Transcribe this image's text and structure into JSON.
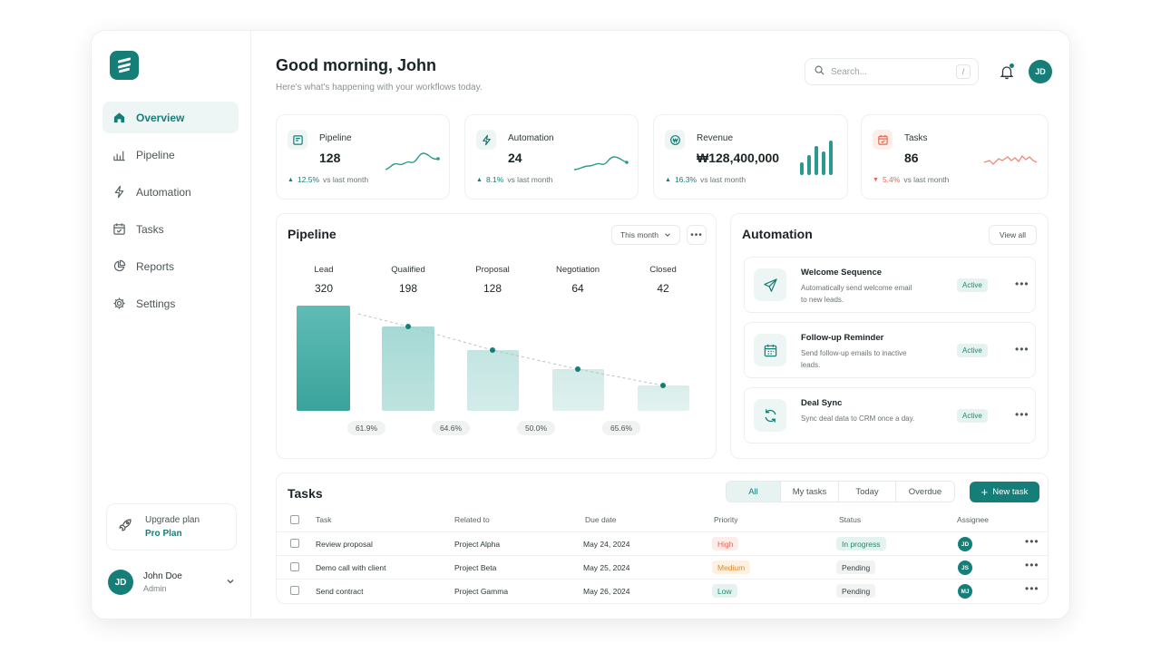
{
  "sidebar": {
    "items": [
      {
        "label": "Overview",
        "icon": "home-icon"
      },
      {
        "label": "Pipeline",
        "icon": "bar-chart-icon"
      },
      {
        "label": "Automation",
        "icon": "lightning-icon"
      },
      {
        "label": "Tasks",
        "icon": "calendar-check-icon"
      },
      {
        "label": "Reports",
        "icon": "pie-chart-icon"
      },
      {
        "label": "Settings",
        "icon": "gear-icon"
      }
    ],
    "upgrade": {
      "title": "Upgrade plan",
      "plan": "Pro Plan"
    },
    "user": {
      "initials": "JD",
      "name": "John Doe",
      "role": "Admin"
    }
  },
  "header": {
    "greeting": "Good morning, John",
    "subtitle": "Here's what's happening with your workflows today.",
    "search_placeholder": "Search...",
    "search_shortcut": "/",
    "avatar_initials": "JD"
  },
  "kpis": [
    {
      "title": "Pipeline",
      "value": "128",
      "delta": "12.5%",
      "delta_suffix": "vs last month",
      "trend": "up",
      "accent": "#167e78"
    },
    {
      "title": "Automation",
      "value": "24",
      "delta": "8.1%",
      "delta_suffix": "vs last month",
      "trend": "up",
      "accent": "#167e78"
    },
    {
      "title": "Revenue",
      "value": "₩128,400,000",
      "delta": "16.3%",
      "delta_suffix": "vs last month",
      "trend": "up",
      "accent": "#167e78"
    },
    {
      "title": "Tasks",
      "value": "86",
      "delta": "5.4%",
      "delta_suffix": "vs last month",
      "trend": "down",
      "accent": "#e8674f"
    }
  ],
  "pipeline": {
    "title": "Pipeline",
    "range_label": "This month",
    "stages": [
      {
        "label": "Lead",
        "value": "320"
      },
      {
        "label": "Qualified",
        "value": "198"
      },
      {
        "label": "Proposal",
        "value": "128"
      },
      {
        "label": "Negotiation",
        "value": "64"
      },
      {
        "label": "Closed",
        "value": "42"
      }
    ],
    "conversions": [
      "61.9%",
      "64.6%",
      "50.0%",
      "65.6%"
    ]
  },
  "automation": {
    "title": "Automation",
    "view_all": "View all",
    "items": [
      {
        "name": "Welcome Sequence",
        "desc": "Automatically send welcome email to new leads.",
        "status": "Active",
        "icon": "send-icon"
      },
      {
        "name": "Follow-up Reminder",
        "desc": "Send follow-up emails to inactive leads.",
        "status": "Active",
        "icon": "calendar-icon"
      },
      {
        "name": "Deal Sync",
        "desc": "Sync deal data to CRM once a day.",
        "status": "Active",
        "icon": "sync-icon"
      }
    ]
  },
  "tasks": {
    "title": "Tasks",
    "filters": [
      "All",
      "My tasks",
      "Today",
      "Overdue"
    ],
    "new_task": "New task",
    "columns": [
      "Task",
      "Related to",
      "Due date",
      "Priority",
      "Status",
      "Assignee"
    ],
    "rows": [
      {
        "task": "Review proposal",
        "related": "Project Alpha",
        "due": "May 24, 2024",
        "priority": "High",
        "status": "In progress",
        "assignee": "JD"
      },
      {
        "task": "Demo call with client",
        "related": "Project Beta",
        "due": "May 25, 2024",
        "priority": "Medium",
        "status": "Pending",
        "assignee": "JS"
      },
      {
        "task": "Send contract",
        "related": "Project Gamma",
        "due": "May 26, 2024",
        "priority": "Low",
        "status": "Pending",
        "assignee": "MJ"
      }
    ]
  },
  "colors": {
    "primary": "#167e78",
    "danger": "#e8674f",
    "high": "#e8674f",
    "medium": "#e08a2e",
    "low": "#1e8a6e"
  }
}
